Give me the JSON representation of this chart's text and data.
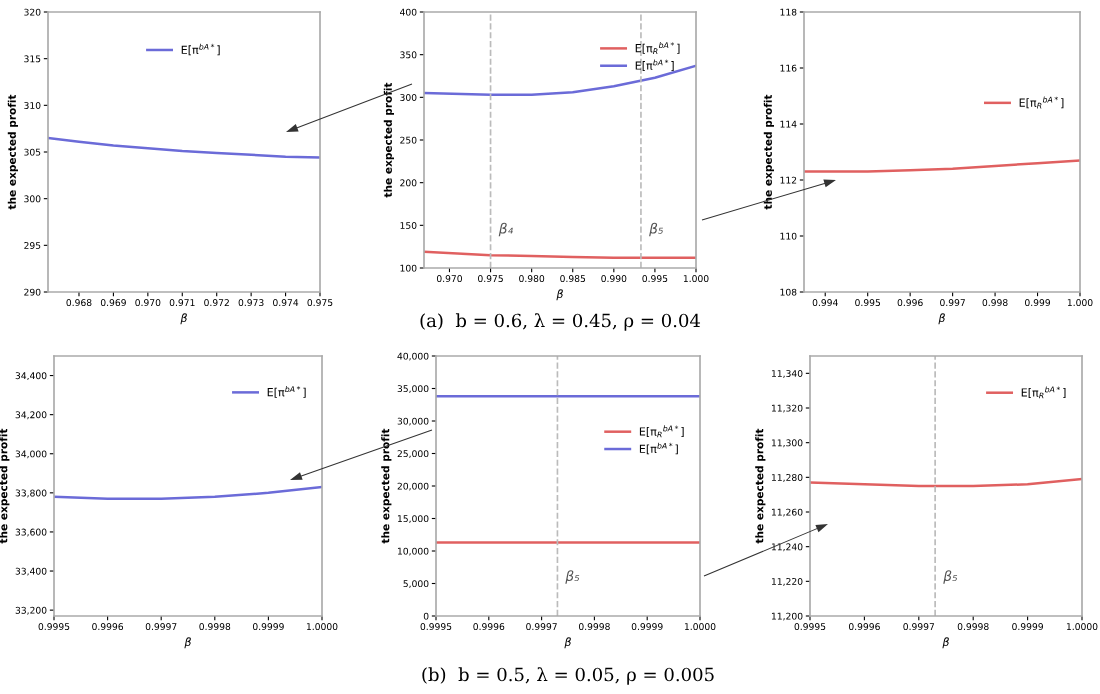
{
  "chart_data": [
    {
      "type": "line",
      "xlabel": "β",
      "ylabel": "the expected profit",
      "xlim": [
        0.9671,
        0.975
      ],
      "xticks": [
        0.968,
        0.969,
        {
          "value": 0.97,
          "label": "0.970"
        },
        0.971,
        0.972,
        0.973,
        0.974,
        0.975
      ],
      "ylim": [
        290,
        320
      ],
      "yticks": [
        290,
        295,
        300,
        305,
        310,
        315,
        320
      ],
      "legend": "top",
      "series": [
        {
          "name": "E[π$^{bA*}$]",
          "color": "#6b6bd8",
          "x": [
            0.9671,
            0.968,
            0.969,
            0.97,
            0.971,
            0.972,
            0.973,
            0.974,
            0.975
          ],
          "values": [
            306.5,
            306.1,
            305.7,
            305.4,
            305.1,
            304.9,
            304.7,
            304.5,
            304.4
          ]
        }
      ]
    },
    {
      "type": "line",
      "xlabel": "β",
      "ylabel": "the expected profit",
      "xlim": [
        0.9669,
        1.0
      ],
      "xticks": [
        {
          "value": 0.97,
          "label": "0.970"
        },
        0.975,
        {
          "value": 0.98,
          "label": "0.980"
        },
        0.985,
        {
          "value": 0.99,
          "label": "0.990"
        },
        0.995,
        {
          "value": 1.0,
          "label": "1.000"
        }
      ],
      "ylim": [
        100,
        400
      ],
      "yticks": [
        100,
        150,
        200,
        250,
        300,
        350,
        400
      ],
      "legend": "top right",
      "ref_lines": [
        {
          "axis": "x",
          "value": 0.975,
          "label": "β₄",
          "line_style": "dashed",
          "color": "#bbbbbb"
        },
        {
          "axis": "x",
          "value": 0.9933,
          "label": "β₅",
          "line_style": "dashed",
          "color": "#bbbbbb"
        }
      ],
      "annotations": [
        "(a)  b = 0.6, λ = 0.45, ρ = 0.04"
      ],
      "series": [
        {
          "name": "E[π$_{R}$$^{bA*}$]",
          "color": "#e06060",
          "x": [
            0.9669,
            0.975,
            0.98,
            0.985,
            0.99,
            0.995,
            1.0
          ],
          "values": [
            119,
            115,
            114,
            113,
            112,
            112,
            112
          ]
        },
        {
          "name": "E[π$^{bA*}$]",
          "color": "#6b6bd8",
          "x": [
            0.9669,
            0.975,
            0.98,
            0.985,
            0.99,
            0.995,
            1.0
          ],
          "values": [
            305,
            303,
            303,
            306,
            313,
            323,
            337
          ]
        }
      ]
    },
    {
      "type": "line",
      "xlabel": "β",
      "ylabel": "the expected profit",
      "xlim": [
        0.9935,
        1.0
      ],
      "xticks": [
        0.994,
        0.995,
        0.996,
        0.997,
        0.998,
        0.999,
        {
          "value": 1.0,
          "label": "1.000"
        }
      ],
      "ylim": [
        108,
        118
      ],
      "yticks": [
        108,
        110,
        112,
        114,
        116,
        118
      ],
      "legend": "right",
      "series": [
        {
          "name": "E[π$_{R}$$^{bA*}$]",
          "color": "#e06060",
          "x": [
            0.9935,
            0.995,
            0.996,
            0.997,
            0.998,
            0.999,
            1.0
          ],
          "values": [
            112.3,
            112.3,
            112.35,
            112.4,
            112.5,
            112.6,
            112.7
          ]
        }
      ]
    },
    {
      "type": "line",
      "xlabel": "β",
      "ylabel": "the expected profit",
      "xlim": [
        0.9995,
        1.0
      ],
      "xticks": [
        0.9995,
        0.9996,
        0.9997,
        0.9998,
        0.9999,
        {
          "value": 1.0,
          "label": "1.0000"
        }
      ],
      "ylim": [
        33170,
        34500
      ],
      "yticks": [
        {
          "value": 33200,
          "label": "33,200"
        },
        {
          "value": 33400,
          "label": "33,400"
        },
        {
          "value": 33600,
          "label": "33,600"
        },
        {
          "value": 33800,
          "label": "33,800"
        },
        {
          "value": 34000,
          "label": "34,000"
        },
        {
          "value": 34200,
          "label": "34,200"
        },
        {
          "value": 34400,
          "label": "34,400"
        }
      ],
      "legend": "top right",
      "series": [
        {
          "name": "E[π$^{bA*}$]",
          "color": "#6b6bd8",
          "x": [
            0.9995,
            0.9996,
            0.9997,
            0.9998,
            0.9999,
            1.0
          ],
          "values": [
            33780,
            33770,
            33770,
            33780,
            33800,
            33830
          ]
        }
      ]
    },
    {
      "type": "line",
      "xlabel": "β",
      "ylabel": "the expected profit",
      "xlim": [
        0.9995,
        1.0
      ],
      "xticks": [
        0.9995,
        0.9996,
        0.9997,
        0.9998,
        0.9999,
        {
          "value": 1.0,
          "label": "1.0000"
        }
      ],
      "ylim": [
        0,
        40000
      ],
      "yticks": [
        0,
        {
          "value": 5000,
          "label": "5,000"
        },
        {
          "value": 10000,
          "label": "10,000"
        },
        {
          "value": 15000,
          "label": "15,000"
        },
        {
          "value": 20000,
          "label": "20,000"
        },
        {
          "value": 25000,
          "label": "25,000"
        },
        {
          "value": 30000,
          "label": "30,000"
        },
        {
          "value": 35000,
          "label": "35,000"
        },
        {
          "value": 40000,
          "label": "40,000"
        }
      ],
      "legend": "right",
      "ref_lines": [
        {
          "axis": "x",
          "value": 0.99973,
          "label": "β₅",
          "line_style": "dashed",
          "color": "#bbbbbb"
        }
      ],
      "annotations": [
        "(b)  b = 0.5, λ = 0.05, ρ = 0.005"
      ],
      "series": [
        {
          "name": "E[π$_{R}$$^{bA*}$]",
          "color": "#e06060",
          "x": [
            0.9995,
            1.0
          ],
          "values": [
            11300,
            11300
          ]
        },
        {
          "name": "E[π$^{bA*}$]",
          "color": "#6b6bd8",
          "x": [
            0.9995,
            1.0
          ],
          "values": [
            33800,
            33800
          ]
        }
      ]
    },
    {
      "type": "line",
      "xlabel": "β",
      "ylabel": "the expected profit",
      "xlim": [
        0.9995,
        1.0
      ],
      "xticks": [
        0.9995,
        0.9996,
        0.9997,
        0.9998,
        0.9999,
        {
          "value": 1.0,
          "label": "1.0000"
        }
      ],
      "ylim": [
        11200,
        11350
      ],
      "yticks": [
        {
          "value": 11200,
          "label": "11,200"
        },
        {
          "value": 11220,
          "label": "11,220"
        },
        {
          "value": 11240,
          "label": "11,240"
        },
        {
          "value": 11260,
          "label": "11,260"
        },
        {
          "value": 11280,
          "label": "11,280"
        },
        {
          "value": 11300,
          "label": "11,300"
        },
        {
          "value": 11320,
          "label": "11,320"
        },
        {
          "value": 11340,
          "label": "11,340"
        }
      ],
      "legend": "top right",
      "ref_lines": [
        {
          "axis": "x",
          "value": 0.99973,
          "label": "β₅",
          "line_style": "dashed",
          "color": "#bbbbbb"
        }
      ],
      "series": [
        {
          "name": "E[π$_{R}$$^{bA*}$]",
          "color": "#e06060",
          "x": [
            0.9995,
            0.9996,
            0.9997,
            0.9998,
            0.9999,
            1.0
          ],
          "values": [
            11277,
            11276,
            11275,
            11275,
            11276,
            11279
          ]
        }
      ]
    }
  ]
}
